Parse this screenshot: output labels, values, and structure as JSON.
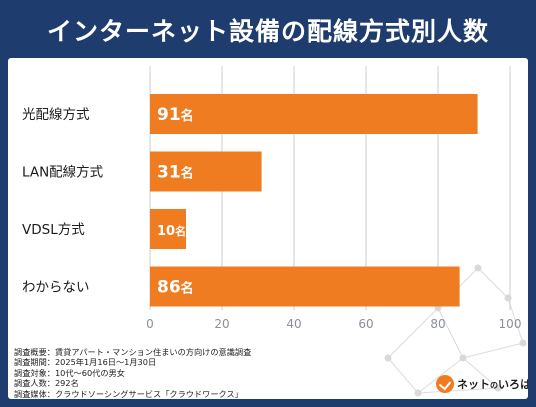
{
  "title": "インターネット設備の配線方式別人数",
  "chart_data": {
    "type": "bar",
    "orientation": "horizontal",
    "categories": [
      "光配線方式",
      "LAN配線方式",
      "VDSL方式",
      "わからない"
    ],
    "values": [
      91,
      31,
      10,
      86
    ],
    "value_labels": [
      "91名",
      "31名",
      "10名",
      "86名"
    ],
    "unit": "名",
    "xlim": [
      0,
      100
    ],
    "ticks": [
      "0",
      "20",
      "40",
      "60",
      "80",
      "100"
    ],
    "grid": true,
    "bar_color": "#f07c22"
  },
  "footnotes": [
    "調査概要：賃貸アパート・マンション住まいの方向けの意識調査",
    "調査期間：2025年1月16日～1月30日",
    "調査対象：10代～60代の男女",
    "調査人数：292名",
    "調査媒体：クラウドソーシングサービス「クラウドワークス」"
  ],
  "logo": {
    "icon": "checkmark-circle-icon",
    "text_main": "ネット",
    "text_small": "の",
    "text_tail": "いろは"
  }
}
